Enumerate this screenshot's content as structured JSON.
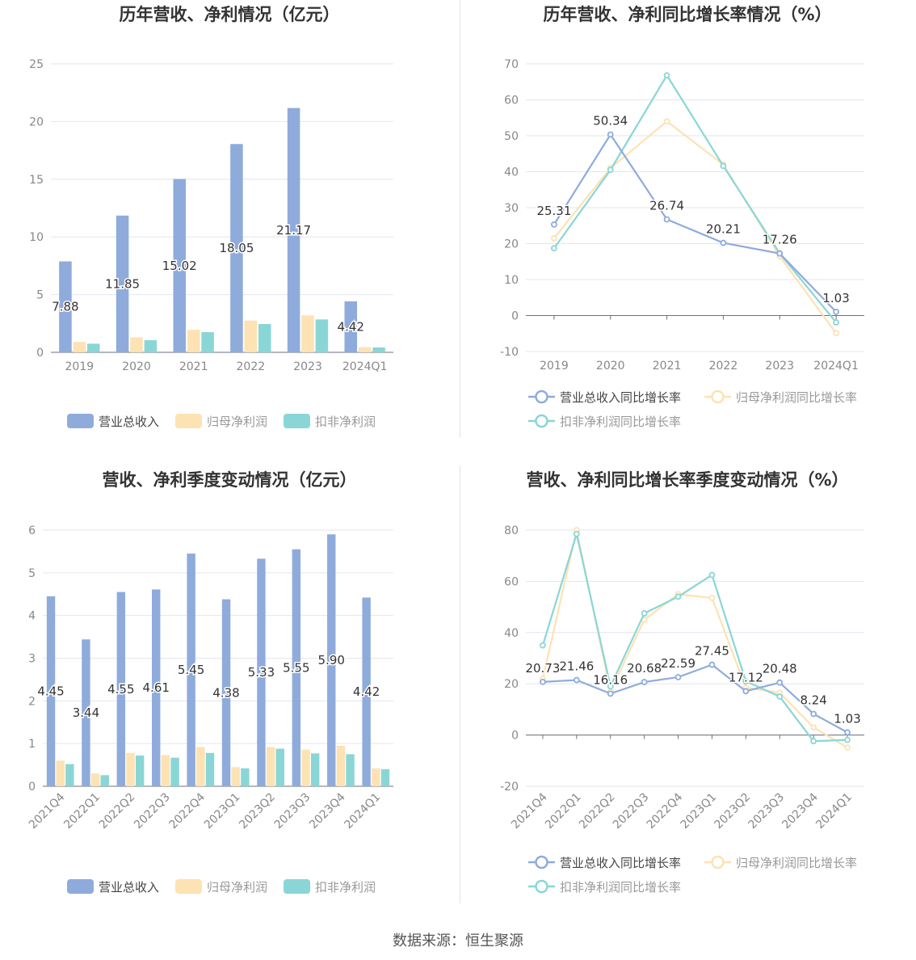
{
  "source_text": "数据来源：恒生聚源",
  "colors": {
    "revenue": "#8fabdc",
    "net_profit": "#fde2b3",
    "deducted_profit": "#8ad6d6",
    "grid": "#e3e6ef",
    "axis": "#6e7079"
  },
  "chart_data": [
    {
      "type": "bar",
      "title": "历年营收、净利情况（亿元）",
      "categories": [
        "2019",
        "2020",
        "2021",
        "2022",
        "2023",
        "2024Q1"
      ],
      "ylim": [
        0,
        25
      ],
      "yticks": [
        "0",
        "5",
        "10",
        "15",
        "20",
        "25"
      ],
      "series": [
        {
          "name": "营业总收入",
          "values": [
            7.88,
            11.85,
            15.02,
            18.05,
            21.17,
            4.42
          ],
          "labels": [
            "7.88",
            "11.85",
            "15.02",
            "18.05",
            "21.17",
            "4.42"
          ]
        },
        {
          "name": "归母净利润",
          "values": [
            0.9,
            1.3,
            1.95,
            2.75,
            3.2,
            0.45
          ]
        },
        {
          "name": "扣非净利润",
          "values": [
            0.75,
            1.05,
            1.75,
            2.45,
            2.85,
            0.42
          ]
        }
      ],
      "legend_position": "bottom",
      "grid": true
    },
    {
      "type": "line",
      "title": "历年营收、净利同比增长率情况（%）",
      "categories": [
        "2019",
        "2020",
        "2021",
        "2022",
        "2023",
        "2024Q1"
      ],
      "ylim": [
        -10,
        70
      ],
      "yticks": [
        "-10",
        "0",
        "10",
        "20",
        "30",
        "40",
        "50",
        "60",
        "70"
      ],
      "series": [
        {
          "name": "营业总收入同比增长率",
          "values": [
            25.31,
            50.34,
            26.74,
            20.21,
            17.26,
            1.03
          ],
          "labels": [
            "25.31",
            "50.34",
            "26.74",
            "20.21",
            "17.26",
            "1.03"
          ]
        },
        {
          "name": "归母净利润同比增长率",
          "values": [
            21.5,
            41.0,
            54.0,
            42.0,
            16.5,
            -4.9
          ]
        },
        {
          "name": "扣非净利润同比增长率",
          "values": [
            18.7,
            40.5,
            66.8,
            41.6,
            17.3,
            -1.9
          ]
        }
      ],
      "legend_position": "bottom",
      "grid": true
    },
    {
      "type": "bar",
      "title": "营收、净利季度变动情况（亿元）",
      "categories": [
        "2021Q4",
        "2022Q1",
        "2022Q2",
        "2022Q3",
        "2022Q4",
        "2023Q1",
        "2023Q2",
        "2023Q3",
        "2023Q4",
        "2024Q1"
      ],
      "ylim": [
        0,
        6
      ],
      "yticks": [
        "0",
        "1",
        "2",
        "3",
        "4",
        "5",
        "6"
      ],
      "series": [
        {
          "name": "营业总收入",
          "values": [
            4.45,
            3.44,
            4.55,
            4.61,
            5.45,
            4.38,
            5.33,
            5.55,
            5.9,
            4.42
          ],
          "labels": [
            "4.45",
            "3.44",
            "4.55",
            "4.61",
            "5.45",
            "4.38",
            "5.33",
            "5.55",
            "5.90",
            "4.42"
          ]
        },
        {
          "name": "归母净利润",
          "values": [
            0.6,
            0.3,
            0.78,
            0.73,
            0.92,
            0.45,
            0.92,
            0.86,
            0.95,
            0.42
          ]
        },
        {
          "name": "扣非净利润",
          "values": [
            0.52,
            0.26,
            0.72,
            0.67,
            0.78,
            0.42,
            0.88,
            0.77,
            0.75,
            0.4
          ]
        }
      ],
      "legend_position": "bottom",
      "grid": true
    },
    {
      "type": "line",
      "title": "营收、净利同比增长率季度变动情况（%）",
      "categories": [
        "2021Q4",
        "2022Q1",
        "2022Q2",
        "2022Q3",
        "2022Q4",
        "2023Q1",
        "2023Q2",
        "2023Q3",
        "2023Q4",
        "2024Q1"
      ],
      "ylim": [
        -20,
        80
      ],
      "yticks": [
        "-20",
        "0",
        "20",
        "40",
        "60",
        "80"
      ],
      "series": [
        {
          "name": "营业总收入同比增长率",
          "values": [
            20.73,
            21.46,
            16.16,
            20.68,
            22.59,
            27.45,
            17.12,
            20.48,
            8.24,
            1.03
          ],
          "labels": [
            "20.73",
            "21.46",
            "16.16",
            "20.68",
            "22.59",
            "27.45",
            "17.12",
            "20.48",
            "8.24",
            "1.03"
          ]
        },
        {
          "name": "归母净利润同比增长率",
          "values": [
            22.0,
            80.0,
            17.0,
            45.0,
            55.0,
            53.5,
            18.5,
            16.5,
            3.0,
            -4.9
          ]
        },
        {
          "name": "扣非净利润同比增长率",
          "values": [
            35.0,
            78.5,
            19.0,
            47.5,
            54.0,
            62.5,
            21.0,
            15.0,
            -2.4,
            -1.9
          ]
        }
      ],
      "legend_position": "bottom",
      "grid": true
    }
  ]
}
